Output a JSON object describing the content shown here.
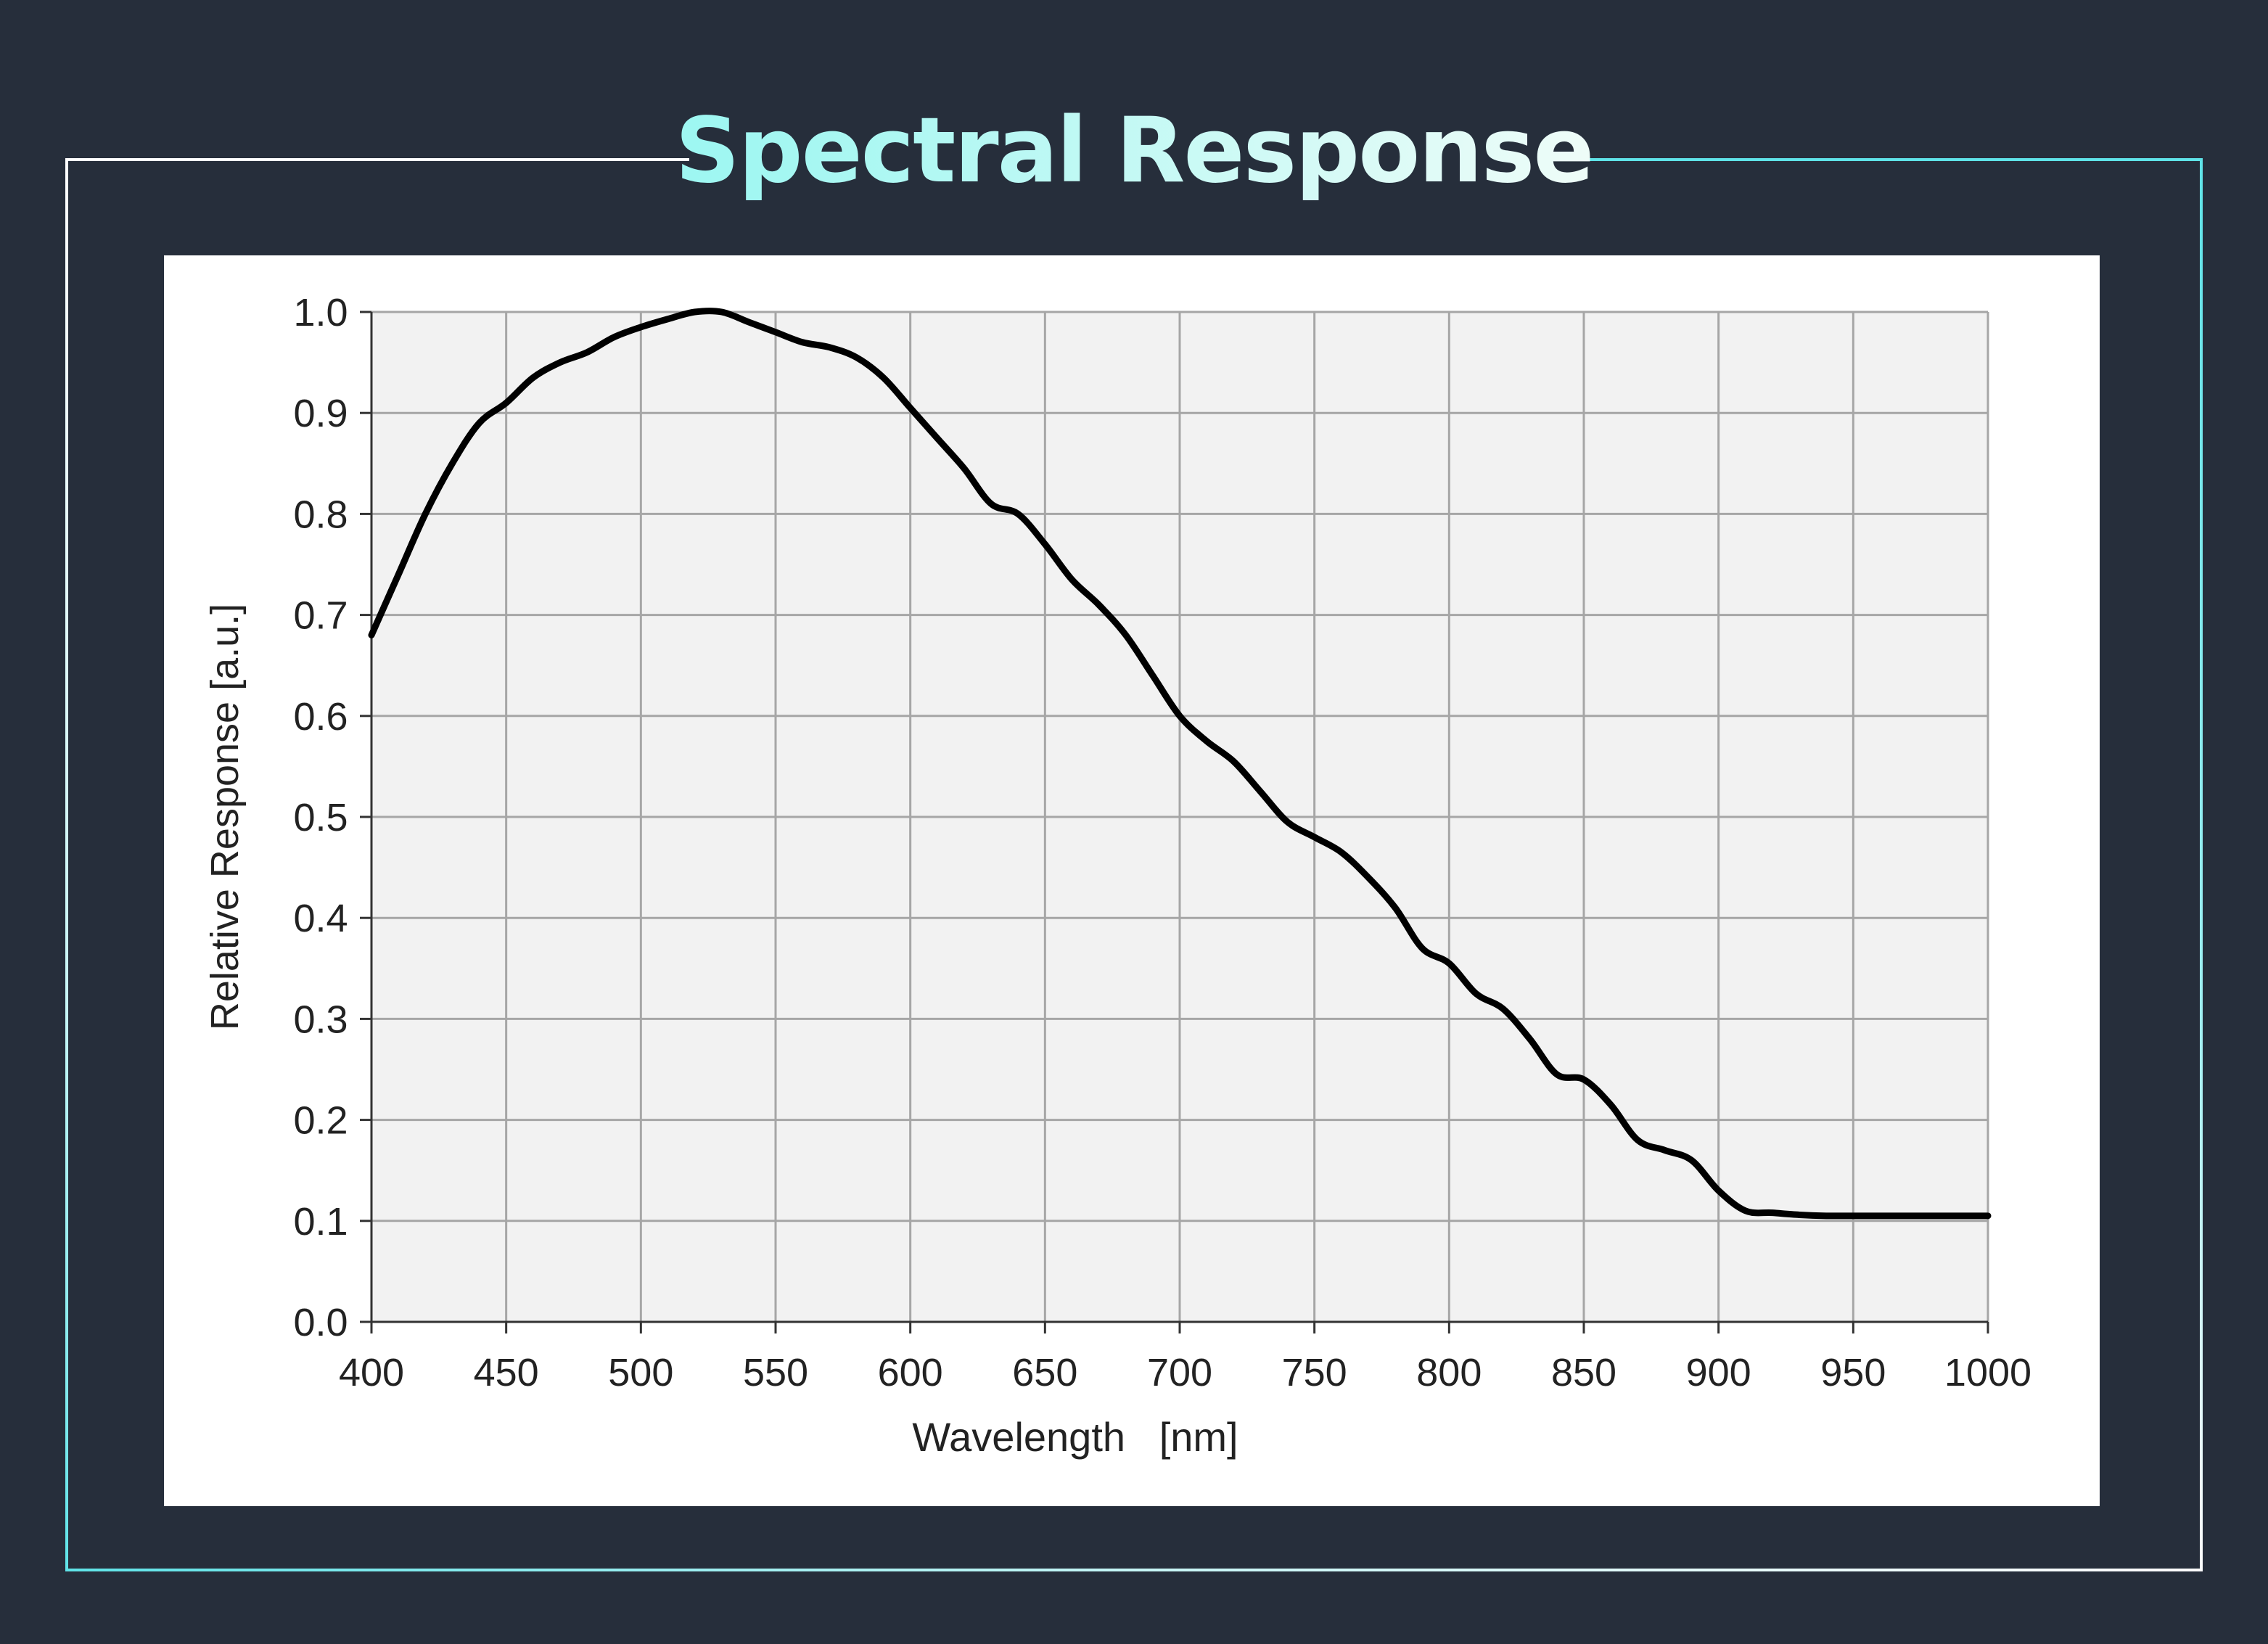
{
  "page": {
    "title": "Spectral Response",
    "colors": {
      "background": "#262e3b",
      "frame_left": "#ffffff",
      "frame_right": "#5fe3e8",
      "title_gradient": [
        "#6ff6f6",
        "#ffffff"
      ],
      "plot_background": "#f2f2f2",
      "grid": "#a6a6a6",
      "curve": "#000000"
    }
  },
  "chart_data": {
    "type": "line",
    "title": "",
    "xlabel": "Wavelength   [nm]",
    "ylabel": "Relative Response [a.u.]",
    "xlim": [
      400,
      1000
    ],
    "ylim": [
      0.0,
      1.0
    ],
    "xticks": [
      "400",
      "450",
      "500",
      "550",
      "600",
      "650",
      "700",
      "750",
      "800",
      "850",
      "900",
      "950",
      "1000"
    ],
    "yticks": [
      "0.0",
      "0.1",
      "0.2",
      "0.3",
      "0.4",
      "0.5",
      "0.6",
      "0.7",
      "0.8",
      "0.9",
      "1.0"
    ],
    "grid": true,
    "legend": "none",
    "series": [
      {
        "x": [
          400,
          410,
          420,
          430,
          440,
          450,
          460,
          470,
          480,
          490,
          500,
          510,
          520,
          530,
          540,
          550,
          560,
          570,
          580,
          590,
          600,
          610,
          620,
          630,
          640,
          650,
          660,
          670,
          680,
          690,
          700,
          710,
          720,
          730,
          740,
          750,
          760,
          770,
          780,
          790,
          800,
          810,
          820,
          830,
          840,
          850,
          860,
          870,
          880,
          890,
          900,
          910,
          920,
          930,
          940,
          950,
          960,
          970,
          980,
          990,
          1000
        ],
        "y": [
          0.68,
          0.74,
          0.8,
          0.85,
          0.89,
          0.91,
          0.935,
          0.95,
          0.96,
          0.975,
          0.985,
          0.993,
          1.0,
          1.0,
          0.99,
          0.98,
          0.97,
          0.965,
          0.955,
          0.935,
          0.905,
          0.875,
          0.845,
          0.81,
          0.8,
          0.77,
          0.735,
          0.71,
          0.68,
          0.64,
          0.6,
          0.575,
          0.555,
          0.525,
          0.495,
          0.48,
          0.465,
          0.44,
          0.41,
          0.37,
          0.355,
          0.325,
          0.31,
          0.28,
          0.245,
          0.24,
          0.215,
          0.18,
          0.17,
          0.16,
          0.13,
          0.11,
          0.108,
          0.106,
          0.105,
          0.105,
          0.105,
          0.105,
          0.105,
          0.105,
          0.105
        ]
      }
    ]
  }
}
